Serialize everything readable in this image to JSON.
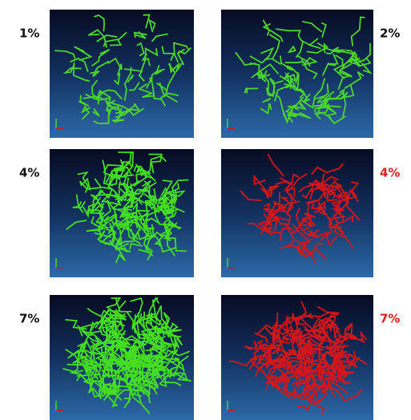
{
  "panels": [
    {
      "label": "1%"
    },
    {
      "label": "2%"
    },
    {
      "label": "4%"
    },
    {
      "label": "4%"
    },
    {
      "label": "7%"
    },
    {
      "label": "7%"
    }
  ]
}
